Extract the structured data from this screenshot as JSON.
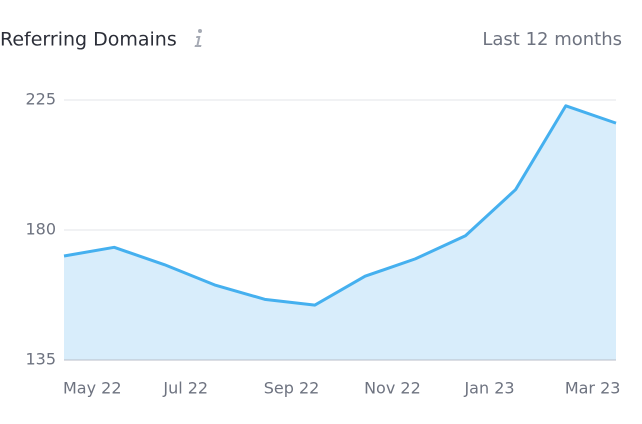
{
  "chart_data": {
    "type": "area",
    "title": "Referring Domains",
    "subtitle": "Last 12 months",
    "categories": [
      "May 22",
      null,
      "Jul 22",
      null,
      "Sep 22",
      null,
      "Nov 22",
      null,
      "Jan 23",
      null,
      "Mar 23",
      null
    ],
    "values": [
      171,
      174,
      168,
      161,
      156,
      154,
      164,
      170,
      178,
      194,
      223,
      217
    ],
    "color": "#45b0ef",
    "fill_color": "#d8edfb",
    "ylim": [
      135,
      225
    ],
    "yticks": [
      135,
      180,
      225
    ],
    "grid": true
  }
}
